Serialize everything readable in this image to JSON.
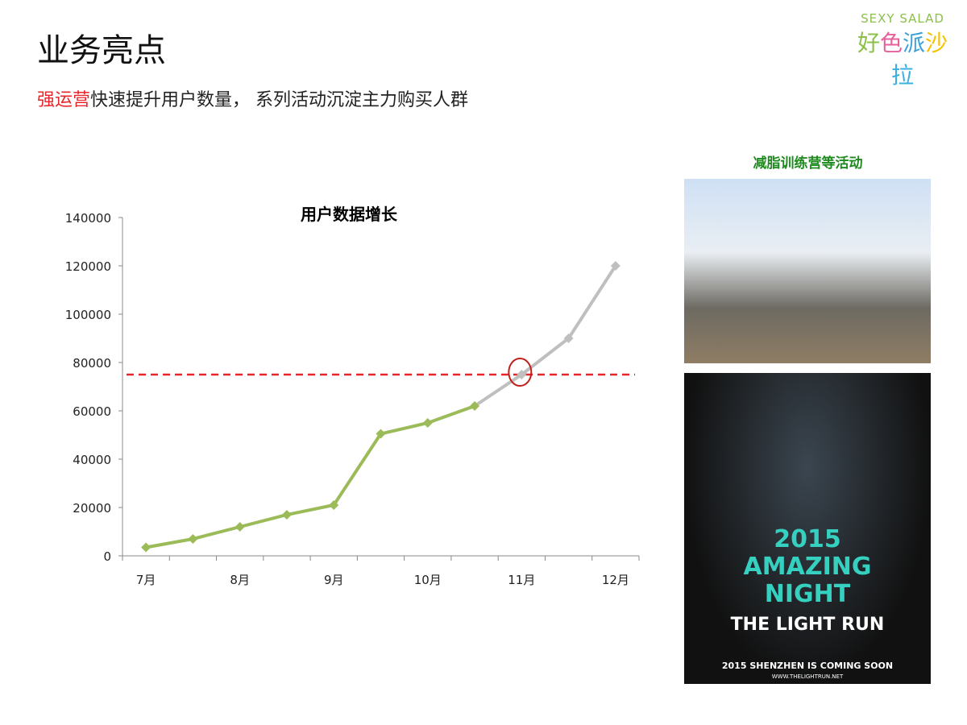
{
  "header": {
    "title": "业务亮点",
    "subtitle_highlight": "强运营",
    "subtitle_rest": "快速提升用户数量，  系列活动沉淀主力购买人群"
  },
  "logo": {
    "en": "SEXY SALAD",
    "cn": [
      "好",
      "色",
      "派",
      "沙",
      "拉"
    ],
    "colors": [
      "#8cc04b",
      "#e6609a",
      "#3aa0d8",
      "#f2c200",
      "#3ab0e0"
    ]
  },
  "activities": {
    "title": "减脂训练营等活动",
    "poster": {
      "line1": "2015",
      "line2": "AMAZING",
      "line3": "NIGHT",
      "brand": "THE LIGHT RUN",
      "tagline": "2015 SHENZHEN IS COMING SOON",
      "url": "WWW.THELIGHTRUN.NET"
    }
  },
  "chart_data": {
    "type": "line",
    "title": "用户数据增长",
    "categories": [
      "7月",
      "",
      "8月",
      "",
      "9月",
      "",
      "10月",
      "",
      "11月",
      "",
      "12月"
    ],
    "values": [
      3500,
      7000,
      12000,
      17000,
      21000,
      50500,
      55000,
      62000,
      75000,
      90000,
      120000
    ],
    "actual_until_index": 7,
    "ylim": [
      0,
      140000
    ],
    "yticks": [
      0,
      20000,
      40000,
      60000,
      80000,
      100000,
      120000,
      140000
    ],
    "reference_line": 75000,
    "highlight_index": 8,
    "colors": {
      "actual": "#9bbb59",
      "projected": "#bfbfbf",
      "reference": "#e8262a"
    },
    "grid": false
  }
}
